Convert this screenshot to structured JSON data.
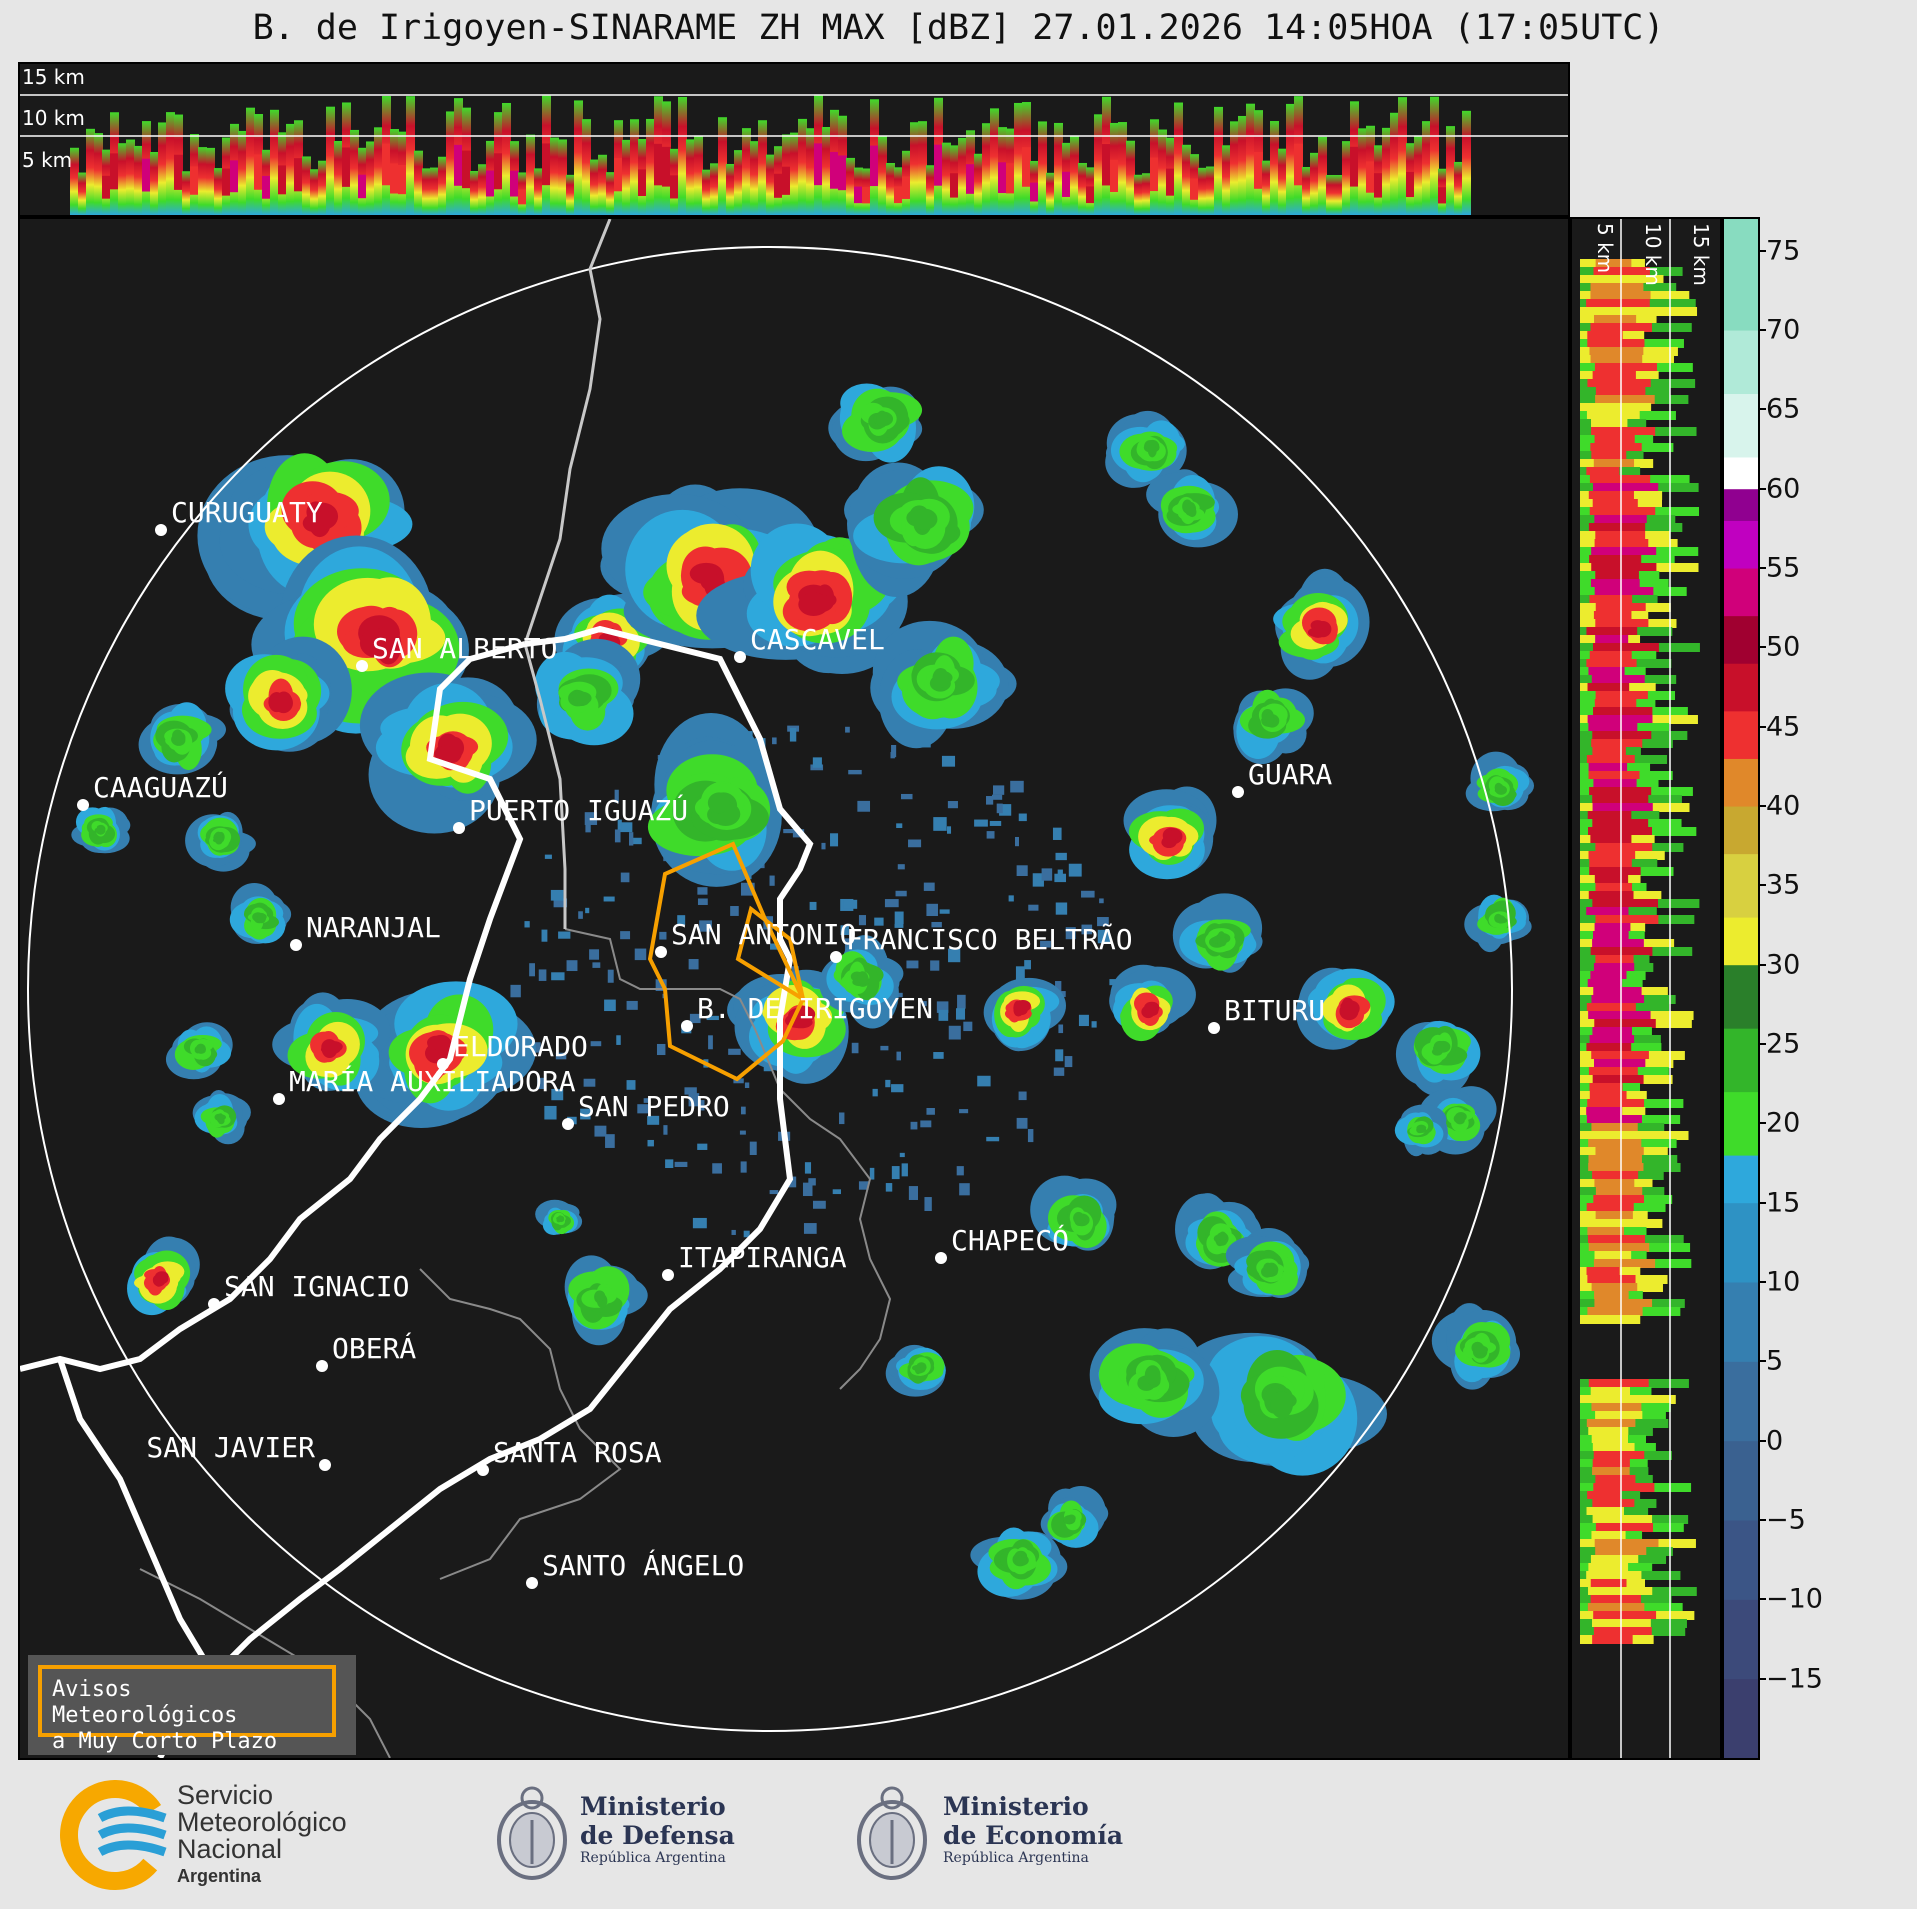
{
  "title": "B. de Irigoyen-SINARAME ZH MAX [dBZ] 27.01.2026 14:05HOA (17:05UTC)",
  "top_strip": {
    "height_labels": [
      "15 km",
      "10 km",
      "5 km"
    ]
  },
  "side_strip": {
    "height_labels": [
      "5 km",
      "10 km",
      "15 km"
    ]
  },
  "colorbar": {
    "unit": "dBZ",
    "ticks": [
      "75",
      "70",
      "65",
      "60",
      "55",
      "50",
      "45",
      "40",
      "35",
      "30",
      "25",
      "20",
      "15",
      "10",
      "5",
      "0",
      "−5",
      "−10",
      "−15"
    ],
    "range": [
      -20,
      77
    ],
    "bands": [
      {
        "from": -20,
        "to": -15,
        "color": "#3b3f6e"
      },
      {
        "from": -15,
        "to": -10,
        "color": "#3c4a7a"
      },
      {
        "from": -10,
        "to": -5,
        "color": "#3b5586"
      },
      {
        "from": -5,
        "to": 0,
        "color": "#3a6190"
      },
      {
        "from": 0,
        "to": 5,
        "color": "#3a6e9e"
      },
      {
        "from": 5,
        "to": 10,
        "color": "#357fb0"
      },
      {
        "from": 10,
        "to": 15,
        "color": "#2e92c4"
      },
      {
        "from": 15,
        "to": 18,
        "color": "#2ea8dc"
      },
      {
        "from": 18,
        "to": 22,
        "color": "#3fdb2a"
      },
      {
        "from": 22,
        "to": 26,
        "color": "#33b52a"
      },
      {
        "from": 26,
        "to": 30,
        "color": "#2a7f2a"
      },
      {
        "from": 30,
        "to": 33,
        "color": "#ecec2e"
      },
      {
        "from": 33,
        "to": 37,
        "color": "#d8d040"
      },
      {
        "from": 37,
        "to": 40,
        "color": "#c8a830"
      },
      {
        "from": 40,
        "to": 43,
        "color": "#e0882a"
      },
      {
        "from": 43,
        "to": 46,
        "color": "#ee3030"
      },
      {
        "from": 46,
        "to": 49,
        "color": "#c8102a"
      },
      {
        "from": 49,
        "to": 52,
        "color": "#a00030"
      },
      {
        "from": 52,
        "to": 55,
        "color": "#d0007a"
      },
      {
        "from": 55,
        "to": 58,
        "color": "#c000c0"
      },
      {
        "from": 58,
        "to": 60,
        "color": "#900090"
      },
      {
        "from": 60,
        "to": 62,
        "color": "#ffffff"
      },
      {
        "from": 62,
        "to": 66,
        "color": "#d8f4ec"
      },
      {
        "from": 66,
        "to": 70,
        "color": "#b0ead8"
      },
      {
        "from": 70,
        "to": 77,
        "color": "#88dcc0"
      }
    ]
  },
  "cities": [
    {
      "name": "CURUGUATY"
    },
    {
      "name": "SAN ALBERTO"
    },
    {
      "name": "CASCAVEL"
    },
    {
      "name": "CAAGUAZÚ"
    },
    {
      "name": "GUARA"
    },
    {
      "name": "PUERTO IGUAZÚ"
    },
    {
      "name": "NARANJAL"
    },
    {
      "name": "SAN ANTONIO"
    },
    {
      "name": "FRANCISCO BELTRÃO"
    },
    {
      "name": "B. DE IRIGOYEN"
    },
    {
      "name": "BITURU"
    },
    {
      "name": "ELDORADO"
    },
    {
      "name": "MARÍA AUXILIADORA"
    },
    {
      "name": "SAN PEDRO"
    },
    {
      "name": "CHAPECÓ"
    },
    {
      "name": "ITAPIRANGA"
    },
    {
      "name": "SAN IGNACIO"
    },
    {
      "name": "OBERÁ"
    },
    {
      "name": "SAN JAVIER"
    },
    {
      "name": "SANTA ROSA"
    },
    {
      "name": "SANTO ÁNGELO"
    }
  ],
  "avisos": {
    "line1": "Avisos Meteorológicos",
    "line2": "a Muy Corto Plazo"
  },
  "logos": {
    "smn": {
      "line1": "Servicio",
      "line2": "Meteorológico",
      "line3": "Nacional",
      "line4": "Argentina",
      "color_blue": "#2a9fd6",
      "color_yellow": "#f7a800"
    },
    "defensa": {
      "line1": "Ministerio",
      "line2": "de Defensa",
      "line3": "República Argentina"
    },
    "economia": {
      "line1": "Ministerio",
      "line2": "de Economía",
      "line3": "República Argentina"
    }
  }
}
